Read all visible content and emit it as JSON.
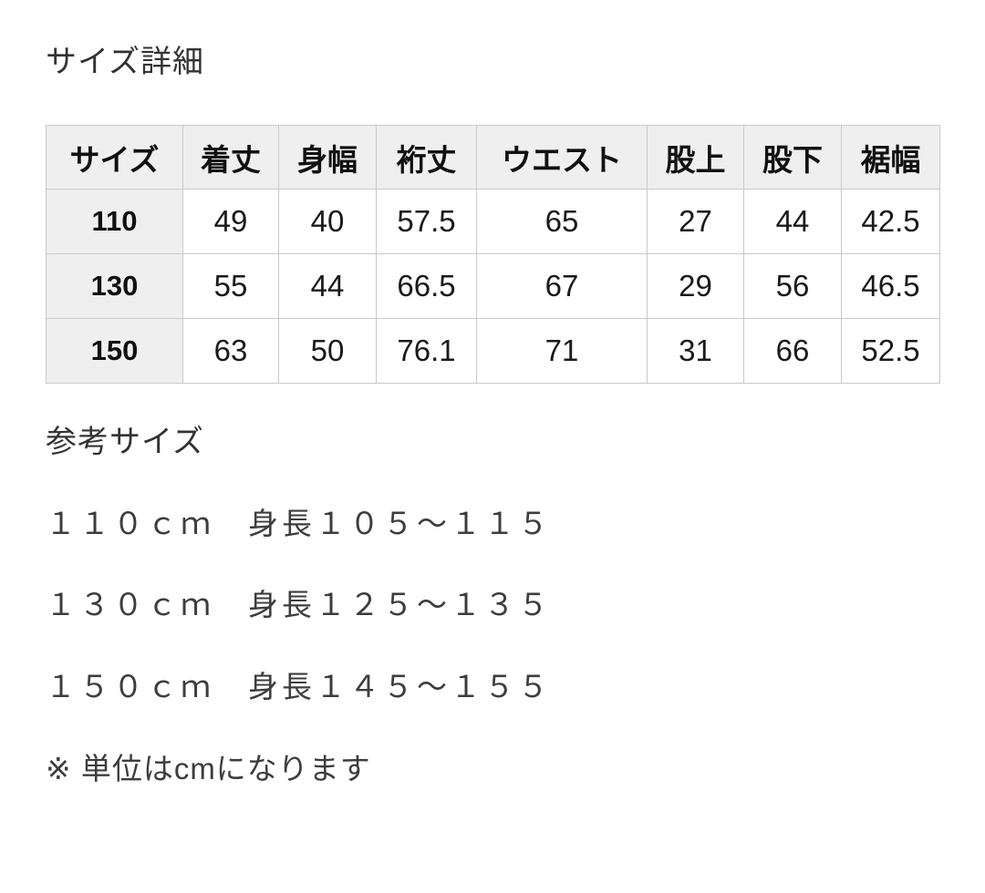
{
  "page": {
    "title": "サイズ詳細",
    "reference_heading": "参考サイズ",
    "unit_note": "※ 単位はcmになります"
  },
  "size_table": {
    "columns": [
      "サイズ",
      "着丈",
      "身幅",
      "裄丈",
      "ウエスト",
      "股上",
      "股下",
      "裾幅"
    ],
    "rows": [
      {
        "size": "110",
        "values": [
          "49",
          "40",
          "57.5",
          "65",
          "27",
          "44",
          "42.5"
        ]
      },
      {
        "size": "130",
        "values": [
          "55",
          "44",
          "66.5",
          "67",
          "29",
          "56",
          "46.5"
        ]
      },
      {
        "size": "150",
        "values": [
          "63",
          "50",
          "76.1",
          "71",
          "31",
          "66",
          "52.5"
        ]
      }
    ]
  },
  "reference_sizes": [
    {
      "text": "１１０ｃｍ　身長１０５〜１１５"
    },
    {
      "text": "１３０ｃｍ　身長１２５〜１３５"
    },
    {
      "text": "１５０ｃｍ　身長１４５〜１５５"
    }
  ],
  "colors": {
    "header_background": "#efefef",
    "table_border": "#c9c9c9",
    "text_primary": "#1a1a1a",
    "text_secondary": "#3d3d3d",
    "page_background": "#ffffff"
  }
}
